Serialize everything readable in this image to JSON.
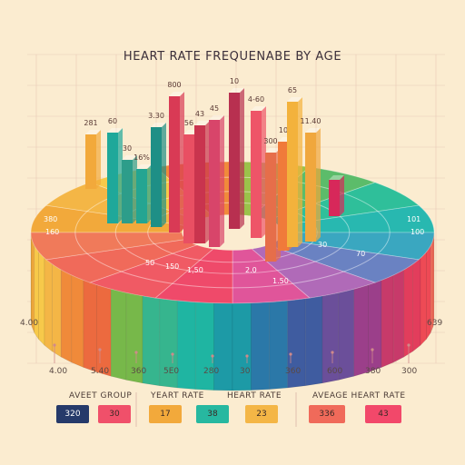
{
  "chart_data": {
    "type": "bar",
    "title": "HEART RATE FREQUENABE BY AGE",
    "bars": [
      {
        "label": "281",
        "color": "#f2a93b"
      },
      {
        "label": "60",
        "color": "#1fa89a"
      },
      {
        "label": "30",
        "color": "#2d9d8a"
      },
      {
        "label": "16%",
        "color": "#24a592"
      },
      {
        "label": "3.30",
        "color": "#1e8f86"
      },
      {
        "label": "800",
        "color": "#d93a55"
      },
      {
        "label": "56",
        "color": "#e94f63"
      },
      {
        "label": "43",
        "color": "#c9344e"
      },
      {
        "label": "45",
        "color": "#d8456a"
      },
      {
        "label": "10",
        "color": "#b83050"
      },
      {
        "label": "4-60",
        "color": "#ee5568"
      },
      {
        "label": "300",
        "color": "#e66e4a"
      },
      {
        "label": "10",
        "color": "#f07a3a"
      },
      {
        "label": "65",
        "color": "#f3b23c"
      },
      {
        "label": "11.40",
        "color": "#f0a73d"
      },
      {
        "label": "",
        "color": "#d7285a"
      }
    ],
    "ring_labels": [
      {
        "text": "380"
      },
      {
        "text": "160"
      },
      {
        "text": "30"
      },
      {
        "text": "50"
      },
      {
        "text": "150"
      },
      {
        "text": "1,50"
      },
      {
        "text": "2.0"
      },
      {
        "text": "1.50"
      },
      {
        "text": "70"
      },
      {
        "text": "101"
      },
      {
        "text": "100"
      },
      {
        "text": "30"
      }
    ],
    "side_labels": {
      "left": "4.00",
      "right": "639"
    },
    "x_tick_labels": [
      "4.00",
      "5.40",
      "360",
      "5E0",
      "280",
      "30",
      "360",
      "600",
      "380",
      "300"
    ]
  },
  "legend": {
    "groups": [
      {
        "label": "AVEET GROUP",
        "items": [
          {
            "value": "320",
            "color": "#263a6a"
          },
          {
            "value": "30",
            "color": "#f0506a"
          }
        ]
      },
      {
        "label": "YEART RATE",
        "items": [
          {
            "value": "17",
            "color": "#f2a93b"
          },
          {
            "value": "38",
            "color": "#27b8a0"
          }
        ]
      },
      {
        "label": "HEART RATE",
        "items": [
          {
            "value": "23",
            "color": "#f4b646"
          }
        ]
      },
      {
        "label": "AVEAGE HEART RATE",
        "items": [
          {
            "value": "336",
            "color": "#f06a5a"
          },
          {
            "value": "43",
            "color": "#f2486a"
          }
        ]
      }
    ]
  },
  "colors": {
    "background": "#fbecd0",
    "grid": "#e9c9b6"
  }
}
